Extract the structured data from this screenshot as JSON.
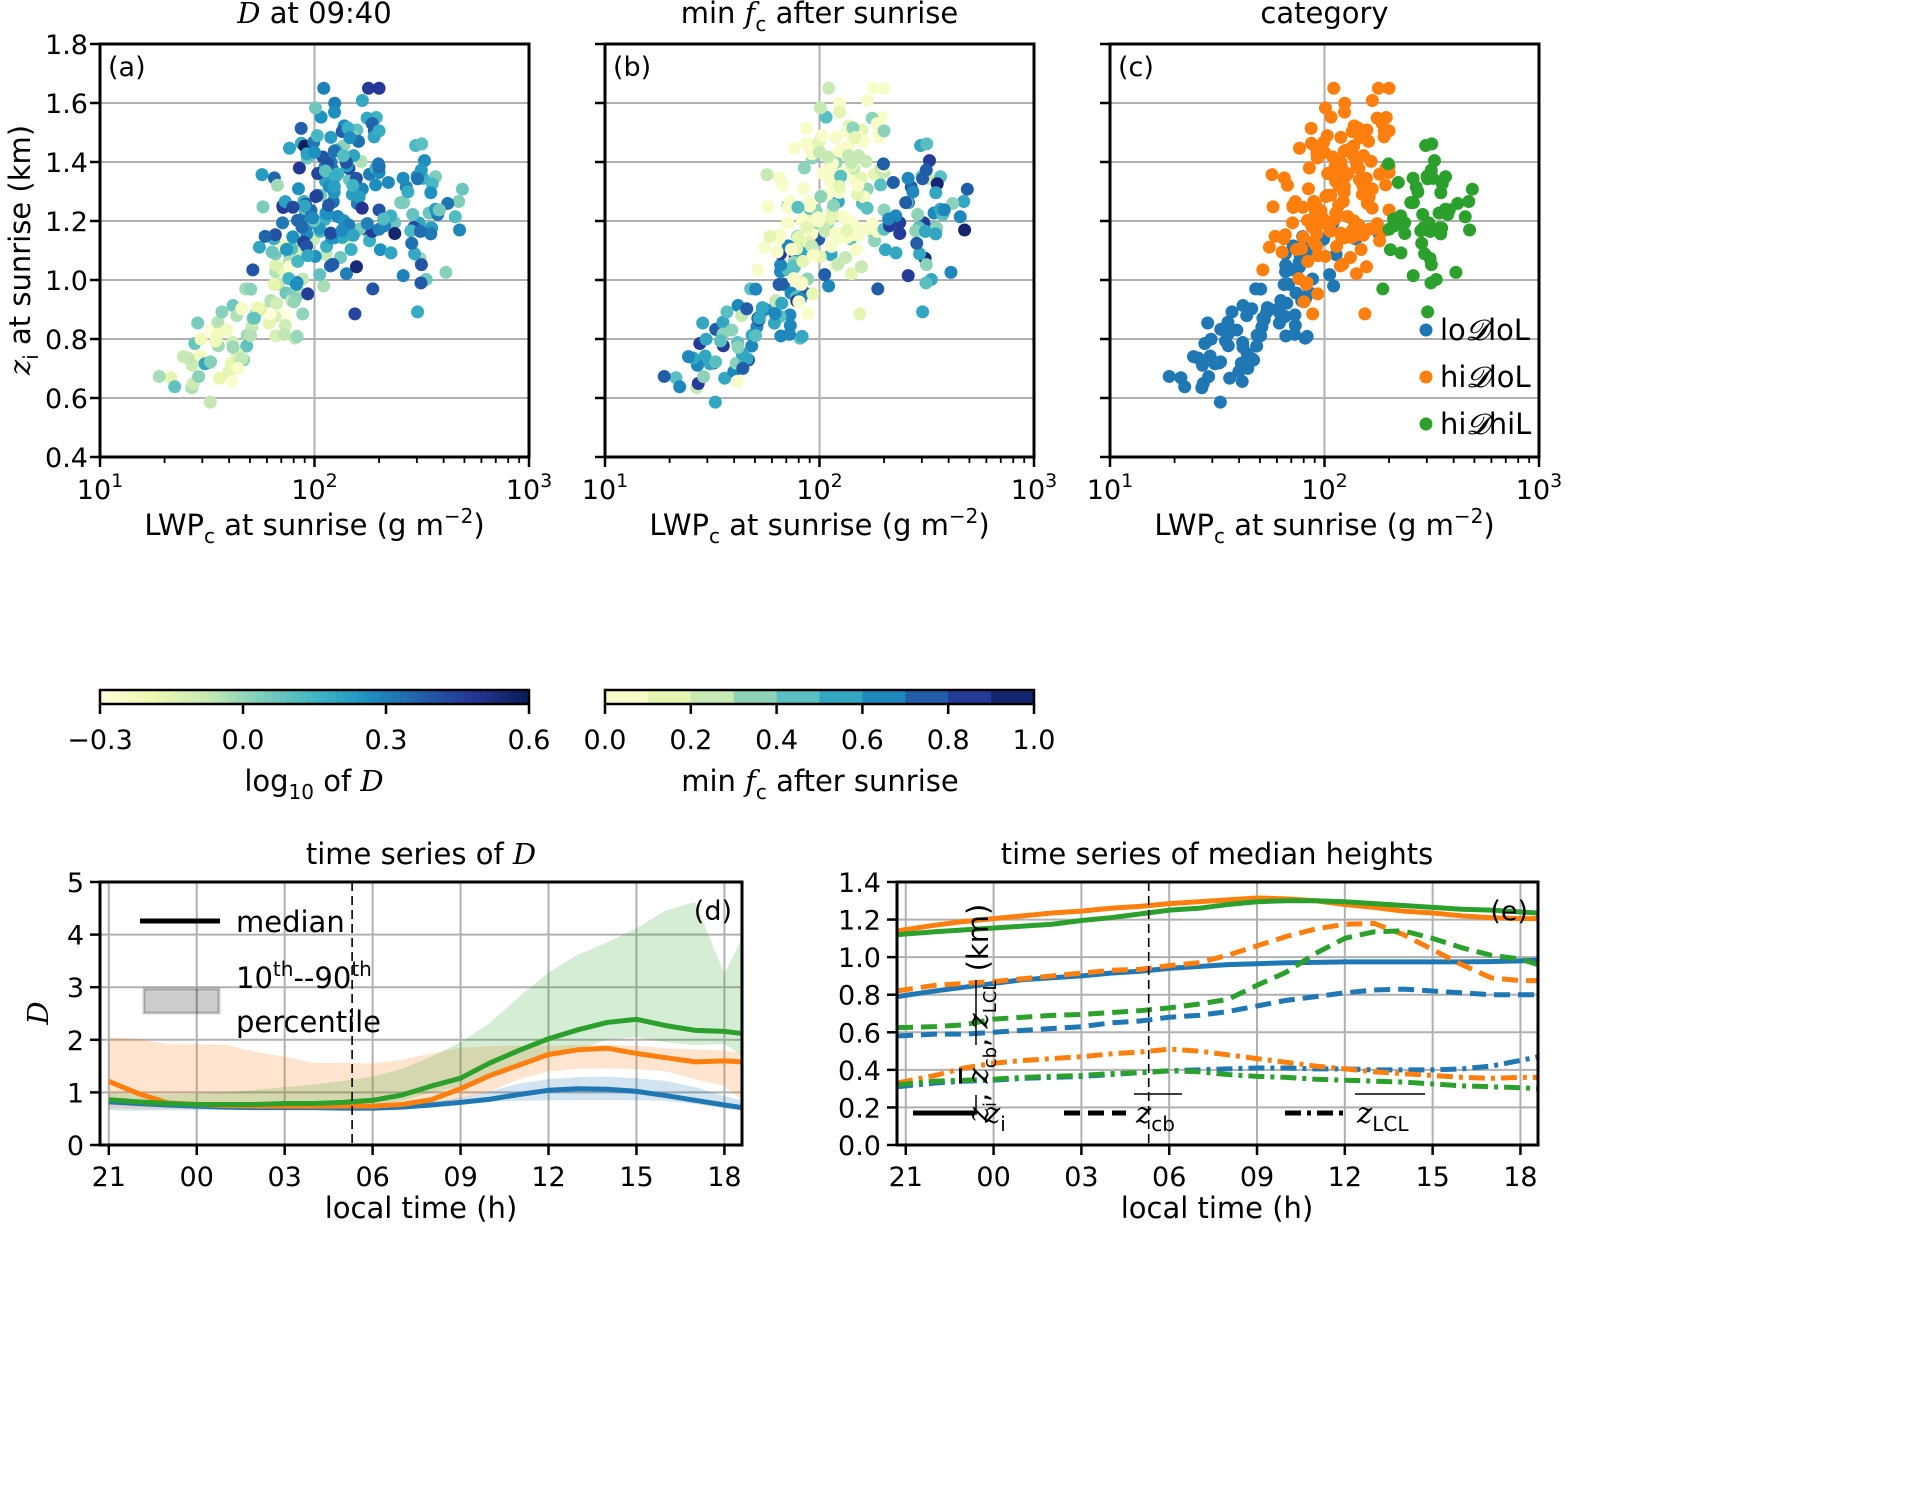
{
  "colors": {
    "loDloL": "#1f77b4",
    "hiDloL": "#ff7f0e",
    "hiDhiL": "#2ca02c",
    "grid": "#b0b0b0",
    "ylgnbu": [
      "#ffffd9",
      "#edf8b1",
      "#c7e9b4",
      "#7fcdbb",
      "#41b6c4",
      "#1d91c0",
      "#225ea8",
      "#253494",
      "#081d58"
    ]
  },
  "chart_data": [
    {
      "id": "a",
      "type": "scatter",
      "panel_label": "(a)",
      "title": "𝓓 at 09:40",
      "xlabel": "LWP_c at sunrise (g m^-2)",
      "ylabel": "z_i at sunrise (km)",
      "xscale": "log",
      "xlim": [
        10,
        1000
      ],
      "ylim": [
        0.4,
        1.8
      ],
      "xticks": [
        "10^1",
        "10^2",
        "10^3"
      ],
      "yticks": [
        "0.4",
        "0.6",
        "0.8",
        "1.0",
        "1.2",
        "1.4",
        "1.6",
        "1.8"
      ],
      "grid": true,
      "color_by": "log10 of D",
      "colorbar": {
        "label": "log10 of 𝓓",
        "range": [
          -0.3,
          0.6
        ],
        "ticks": [
          "−0.3",
          "0.0",
          "0.3",
          "0.6"
        ],
        "cmap": "YlGnBu",
        "discrete": false
      }
    },
    {
      "id": "b",
      "type": "scatter",
      "panel_label": "(b)",
      "title": "min f_c after sunrise",
      "xlabel": "LWP_c at sunrise (g m^-2)",
      "xscale": "log",
      "xlim": [
        10,
        1000
      ],
      "ylim": [
        0.4,
        1.8
      ],
      "xticks": [
        "10^1",
        "10^2",
        "10^3"
      ],
      "grid": true,
      "color_by": "min f_c after sunrise",
      "colorbar": {
        "label": "min f_c after sunrise",
        "range": [
          0.0,
          1.0
        ],
        "ticks": [
          "0.0",
          "0.2",
          "0.4",
          "0.6",
          "0.8",
          "1.0"
        ],
        "cmap": "YlGnBu",
        "discrete": true,
        "bins": 10
      }
    },
    {
      "id": "c",
      "type": "scatter",
      "panel_label": "(c)",
      "title": "category",
      "xlabel": "LWP_c at sunrise (g m^-2)",
      "xscale": "log",
      "xlim": [
        10,
        1000
      ],
      "ylim": [
        0.4,
        1.8
      ],
      "xticks": [
        "10^1",
        "10^2",
        "10^3"
      ],
      "grid": true,
      "legend": {
        "position": "bottom-right",
        "entries": [
          {
            "prefix": "lo",
            "mid": "𝓓",
            "suffix": "loL",
            "color_key": "loDloL"
          },
          {
            "prefix": "hi",
            "mid": "𝓓",
            "suffix": "loL",
            "color_key": "hiDloL"
          },
          {
            "prefix": "hi",
            "mid": "𝓓",
            "suffix": "hiL",
            "color_key": "hiDhiL"
          }
        ]
      },
      "point_groups": {
        "loDloL": {
          "lwp_range": [
            18,
            180
          ],
          "zi_range": [
            0.58,
            1.34
          ],
          "approx_count": 90
        },
        "hiDloL": {
          "lwp_range": [
            45,
            200
          ],
          "zi_range": [
            0.84,
            1.65
          ],
          "approx_count": 150
        },
        "hiDhiL": {
          "lwp_range": [
            180,
            500
          ],
          "zi_range": [
            0.88,
            1.47
          ],
          "approx_count": 55
        }
      }
    },
    {
      "id": "d",
      "type": "line",
      "panel_label": "(d)",
      "title": "time series of 𝓓",
      "xlabel": "local time (h)",
      "ylabel": "𝓓",
      "xticks": [
        "21",
        "00",
        "03",
        "06",
        "09",
        "12",
        "15",
        "18"
      ],
      "xtick_hours": [
        21,
        24,
        27,
        30,
        33,
        36,
        39,
        42
      ],
      "xlim": [
        20.7,
        42.6
      ],
      "ylim": [
        0,
        5
      ],
      "yticks": [
        "0",
        "1",
        "2",
        "3",
        "4",
        "5"
      ],
      "grid": true,
      "sunrise_line_hour": 29.3,
      "legend": {
        "position": "top-left",
        "entries": [
          {
            "label": "median",
            "kind": "line"
          },
          {
            "label_line1": "10th--90th",
            "label_line2": "percentile",
            "kind": "band"
          }
        ]
      },
      "x": [
        21.0,
        22.0,
        23.0,
        24.0,
        25.0,
        26.0,
        27.0,
        28.0,
        29.0,
        30.0,
        31.0,
        32.0,
        33.0,
        34.0,
        35.0,
        36.0,
        37.0,
        38.0,
        39.0,
        40.0,
        41.0,
        42.0,
        42.6
      ],
      "series": [
        {
          "name": "loDloL",
          "color_key": "loDloL",
          "median": [
            0.82,
            0.79,
            0.76,
            0.74,
            0.72,
            0.71,
            0.71,
            0.71,
            0.7,
            0.7,
            0.72,
            0.76,
            0.81,
            0.87,
            0.96,
            1.04,
            1.07,
            1.06,
            1.02,
            0.94,
            0.85,
            0.76,
            0.71
          ],
          "p10": [
            0.66,
            0.65,
            0.66,
            0.66,
            0.67,
            0.67,
            0.67,
            0.67,
            0.67,
            0.67,
            0.7,
            0.74,
            0.8,
            0.83,
            0.84,
            0.85,
            0.85,
            0.85,
            0.85,
            0.84,
            0.78,
            0.7,
            0.66
          ],
          "p90": [
            0.9,
            0.86,
            0.82,
            0.8,
            0.78,
            0.77,
            0.76,
            0.76,
            0.75,
            0.74,
            0.77,
            0.82,
            0.9,
            1.02,
            1.17,
            1.25,
            1.29,
            1.3,
            1.27,
            1.22,
            1.1,
            0.93,
            0.85
          ]
        },
        {
          "name": "hiDloL",
          "color_key": "hiDloL",
          "median": [
            1.21,
            0.98,
            0.8,
            0.77,
            0.75,
            0.74,
            0.74,
            0.74,
            0.74,
            0.74,
            0.77,
            0.86,
            1.07,
            1.32,
            1.52,
            1.72,
            1.81,
            1.84,
            1.74,
            1.66,
            1.58,
            1.6,
            1.58
          ],
          "p10": [
            0.7,
            0.69,
            0.69,
            0.69,
            0.69,
            0.69,
            0.69,
            0.69,
            0.69,
            0.69,
            0.72,
            0.76,
            0.88,
            1.02,
            1.25,
            1.4,
            1.45,
            1.46,
            1.44,
            1.4,
            1.25,
            1.12,
            0.85
          ],
          "p90": [
            2.05,
            2.02,
            1.92,
            1.92,
            1.9,
            1.77,
            1.68,
            1.56,
            1.56,
            1.55,
            1.62,
            1.74,
            1.85,
            1.88,
            1.89,
            1.89,
            1.9,
            1.9,
            1.89,
            1.84,
            1.82,
            1.8,
            1.75
          ]
        },
        {
          "name": "hiDhiL",
          "color_key": "hiDhiL",
          "median": [
            0.86,
            0.82,
            0.79,
            0.77,
            0.77,
            0.77,
            0.79,
            0.79,
            0.81,
            0.85,
            0.95,
            1.12,
            1.27,
            1.56,
            1.8,
            2.02,
            2.19,
            2.33,
            2.39,
            2.27,
            2.18,
            2.16,
            2.12
          ],
          "p10": [
            0.78,
            0.75,
            0.74,
            0.73,
            0.73,
            0.73,
            0.73,
            0.73,
            0.74,
            0.76,
            0.84,
            1.0,
            1.1,
            1.26,
            1.51,
            1.73,
            1.82,
            2.0,
            2.05,
            1.95,
            1.9,
            1.92,
            1.7
          ],
          "p90": [
            0.98,
            0.97,
            0.96,
            0.98,
            1.0,
            1.05,
            1.1,
            1.15,
            1.22,
            1.3,
            1.45,
            1.68,
            1.95,
            2.32,
            2.82,
            3.28,
            3.62,
            3.85,
            4.12,
            4.46,
            4.62,
            3.25,
            3.93
          ]
        }
      ]
    },
    {
      "id": "e",
      "type": "line",
      "panel_label": "(e)",
      "title": "time series of median heights",
      "xlabel": "local time (h)",
      "ylabel": "z_i, mean z_cb, mean z_LCL (km)",
      "xticks": [
        "21",
        "00",
        "03",
        "06",
        "09",
        "12",
        "15",
        "18"
      ],
      "xtick_hours": [
        21,
        24,
        27,
        30,
        33,
        36,
        39,
        42
      ],
      "xlim": [
        20.7,
        42.6
      ],
      "ylim": [
        0.0,
        1.4
      ],
      "yticks": [
        "0.0",
        "0.2",
        "0.4",
        "0.6",
        "0.8",
        "1.0",
        "1.2",
        "1.4"
      ],
      "grid": true,
      "sunrise_line_hour": 29.3,
      "legend": {
        "position": "bottom",
        "entries": [
          {
            "base": "z",
            "sub": "i",
            "overline": false,
            "style": "solid"
          },
          {
            "base": "z",
            "sub": "cb",
            "overline": true,
            "style": "dashed"
          },
          {
            "base": "z",
            "sub": "LCL",
            "overline": true,
            "style": "dashdot"
          }
        ]
      },
      "x": [
        20.7,
        22.0,
        23.0,
        24.0,
        25.0,
        26.0,
        27.0,
        28.0,
        29.0,
        30.0,
        31.0,
        32.0,
        33.0,
        34.0,
        35.0,
        36.0,
        37.0,
        38.0,
        39.0,
        40.0,
        41.0,
        42.0,
        42.6
      ],
      "series": [
        {
          "name": "loDloL",
          "color_key": "loDloL",
          "zi": [
            0.79,
            0.82,
            0.84,
            0.86,
            0.88,
            0.89,
            0.9,
            0.915,
            0.925,
            0.94,
            0.95,
            0.96,
            0.965,
            0.97,
            0.972,
            0.975,
            0.975,
            0.975,
            0.975,
            0.975,
            0.976,
            0.98,
            0.985
          ],
          "zcb": [
            0.58,
            0.59,
            0.59,
            0.6,
            0.61,
            0.62,
            0.63,
            0.65,
            0.66,
            0.68,
            0.69,
            0.71,
            0.74,
            0.77,
            0.79,
            0.81,
            0.825,
            0.83,
            0.82,
            0.81,
            0.8,
            0.8,
            0.8
          ],
          "zlcl": [
            0.31,
            0.33,
            0.34,
            0.345,
            0.355,
            0.36,
            0.365,
            0.375,
            0.385,
            0.395,
            0.4,
            0.405,
            0.41,
            0.41,
            0.405,
            0.405,
            0.4,
            0.4,
            0.4,
            0.405,
            0.42,
            0.45,
            0.47
          ]
        },
        {
          "name": "hiDloL",
          "color_key": "hiDloL",
          "zi": [
            1.14,
            1.17,
            1.19,
            1.205,
            1.22,
            1.235,
            1.245,
            1.26,
            1.27,
            1.285,
            1.295,
            1.305,
            1.315,
            1.31,
            1.3,
            1.28,
            1.265,
            1.245,
            1.235,
            1.22,
            1.21,
            1.205,
            1.205
          ],
          "zcb": [
            0.82,
            0.85,
            0.86,
            0.87,
            0.885,
            0.9,
            0.915,
            0.93,
            0.935,
            0.955,
            0.97,
            1.01,
            1.06,
            1.11,
            1.15,
            1.175,
            1.18,
            1.12,
            1.04,
            0.96,
            0.89,
            0.875,
            0.875
          ],
          "zlcl": [
            0.33,
            0.37,
            0.41,
            0.435,
            0.45,
            0.46,
            0.47,
            0.485,
            0.495,
            0.51,
            0.5,
            0.48,
            0.46,
            0.44,
            0.42,
            0.405,
            0.39,
            0.38,
            0.37,
            0.36,
            0.355,
            0.36,
            0.36
          ]
        },
        {
          "name": "hiDhiL",
          "color_key": "hiDhiL",
          "zi": [
            1.12,
            1.135,
            1.145,
            1.155,
            1.165,
            1.175,
            1.195,
            1.21,
            1.23,
            1.25,
            1.26,
            1.28,
            1.295,
            1.3,
            1.3,
            1.295,
            1.285,
            1.275,
            1.265,
            1.255,
            1.25,
            1.24,
            1.235
          ],
          "zcb": [
            0.625,
            0.63,
            0.64,
            0.67,
            0.68,
            0.69,
            0.695,
            0.705,
            0.715,
            0.73,
            0.75,
            0.775,
            0.85,
            0.92,
            1.02,
            1.1,
            1.135,
            1.14,
            1.1,
            1.05,
            1.01,
            0.99,
            0.96
          ],
          "zlcl": [
            0.32,
            0.34,
            0.345,
            0.35,
            0.36,
            0.365,
            0.37,
            0.38,
            0.385,
            0.395,
            0.39,
            0.375,
            0.365,
            0.36,
            0.35,
            0.345,
            0.34,
            0.335,
            0.325,
            0.315,
            0.31,
            0.305,
            0.3
          ]
        }
      ]
    }
  ],
  "text": {
    "title_a_rest": " at 09:40",
    "title_b_pre": "min ",
    "title_b_rest": " after sunrise",
    "title_c": "category",
    "title_d_pre": "time series of ",
    "title_e": "time series of median heights",
    "x_label_pre": "LWP",
    "x_label_sub": "c",
    "x_label_post": " at sunrise (g m",
    "x_label_sup": "−2",
    "x_label_end": ")",
    "y_label_a_pre": "z",
    "y_label_a_sub": "i",
    "y_label_a_post": " at sunrise (km)",
    "cbar_a_pre": "log",
    "cbar_a_sub": "10",
    "cbar_a_mid": " of ",
    "cbar_b_pre": "min ",
    "cbar_b_post": " after sunrise",
    "f_letter": "f",
    "f_sub": "c",
    "d_symbol": "D",
    "time_xlabel": "local time (h)",
    "legend_median": "median",
    "legend_pct_a": "10",
    "legend_pct_th": "th",
    "legend_pct_b": "--90",
    "legend_pct_c": "percentile",
    "e_ylabel": "z",
    "e_ylabel_rest": "(km)"
  }
}
